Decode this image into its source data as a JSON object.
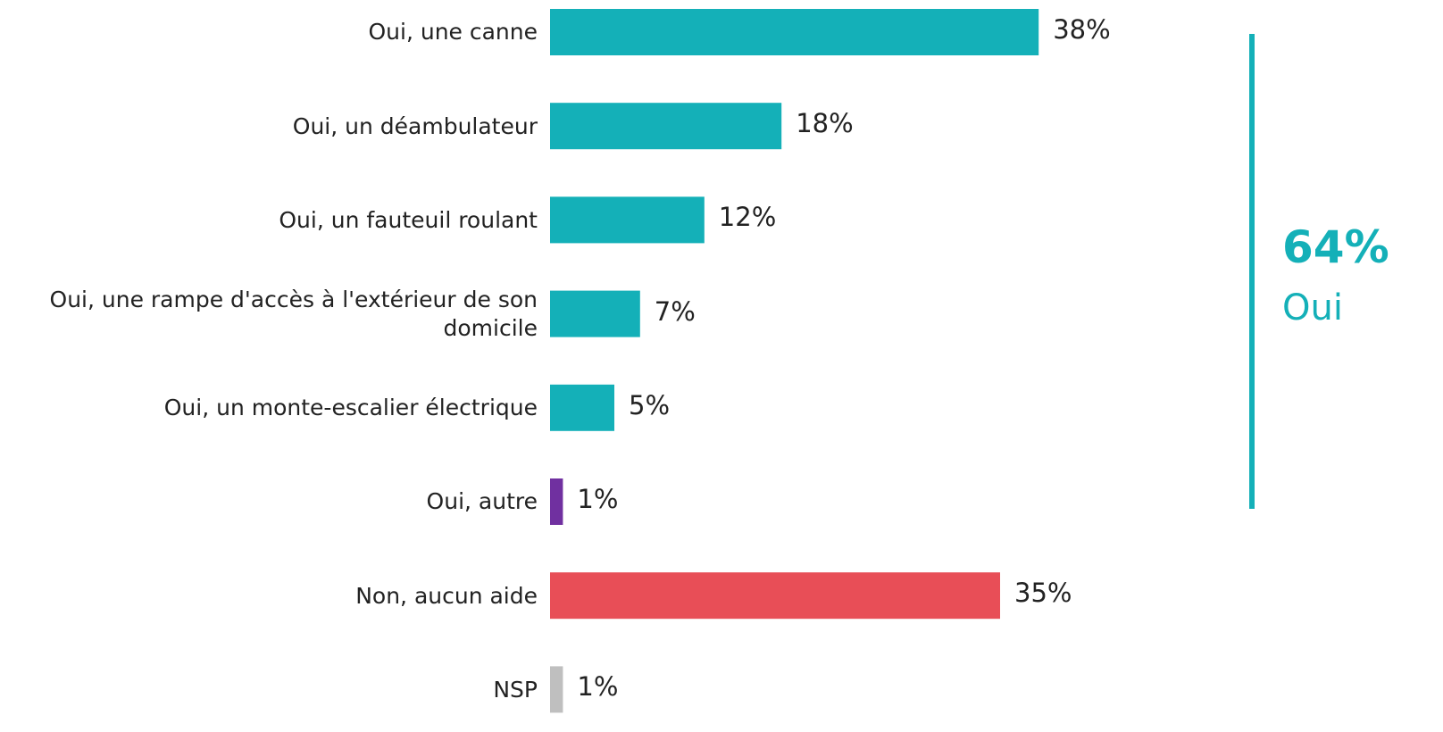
{
  "chart_data": {
    "type": "bar",
    "orientation": "horizontal",
    "categories": [
      "Oui, une canne",
      "Oui, un déambulateur",
      "Oui, un fauteuil roulant",
      "Oui, une rampe d'accès à l'extérieur de son domicile",
      "Oui, un monte-escalier électrique",
      "Oui, autre",
      "Non, aucun aide",
      "NSP"
    ],
    "values": [
      38,
      18,
      12,
      7,
      5,
      1,
      35,
      1
    ],
    "value_labels": [
      "38%",
      "18%",
      "12%",
      "7%",
      "5%",
      "1%",
      "35%",
      "1%"
    ],
    "colors": [
      "#14b0b8",
      "#14b0b8",
      "#14b0b8",
      "#14b0b8",
      "#14b0b8",
      "#7030a0",
      "#e84e57",
      "#bfbfbf"
    ],
    "annotation": {
      "value": "64%",
      "label": "Oui",
      "color": "#14b0b8"
    }
  }
}
